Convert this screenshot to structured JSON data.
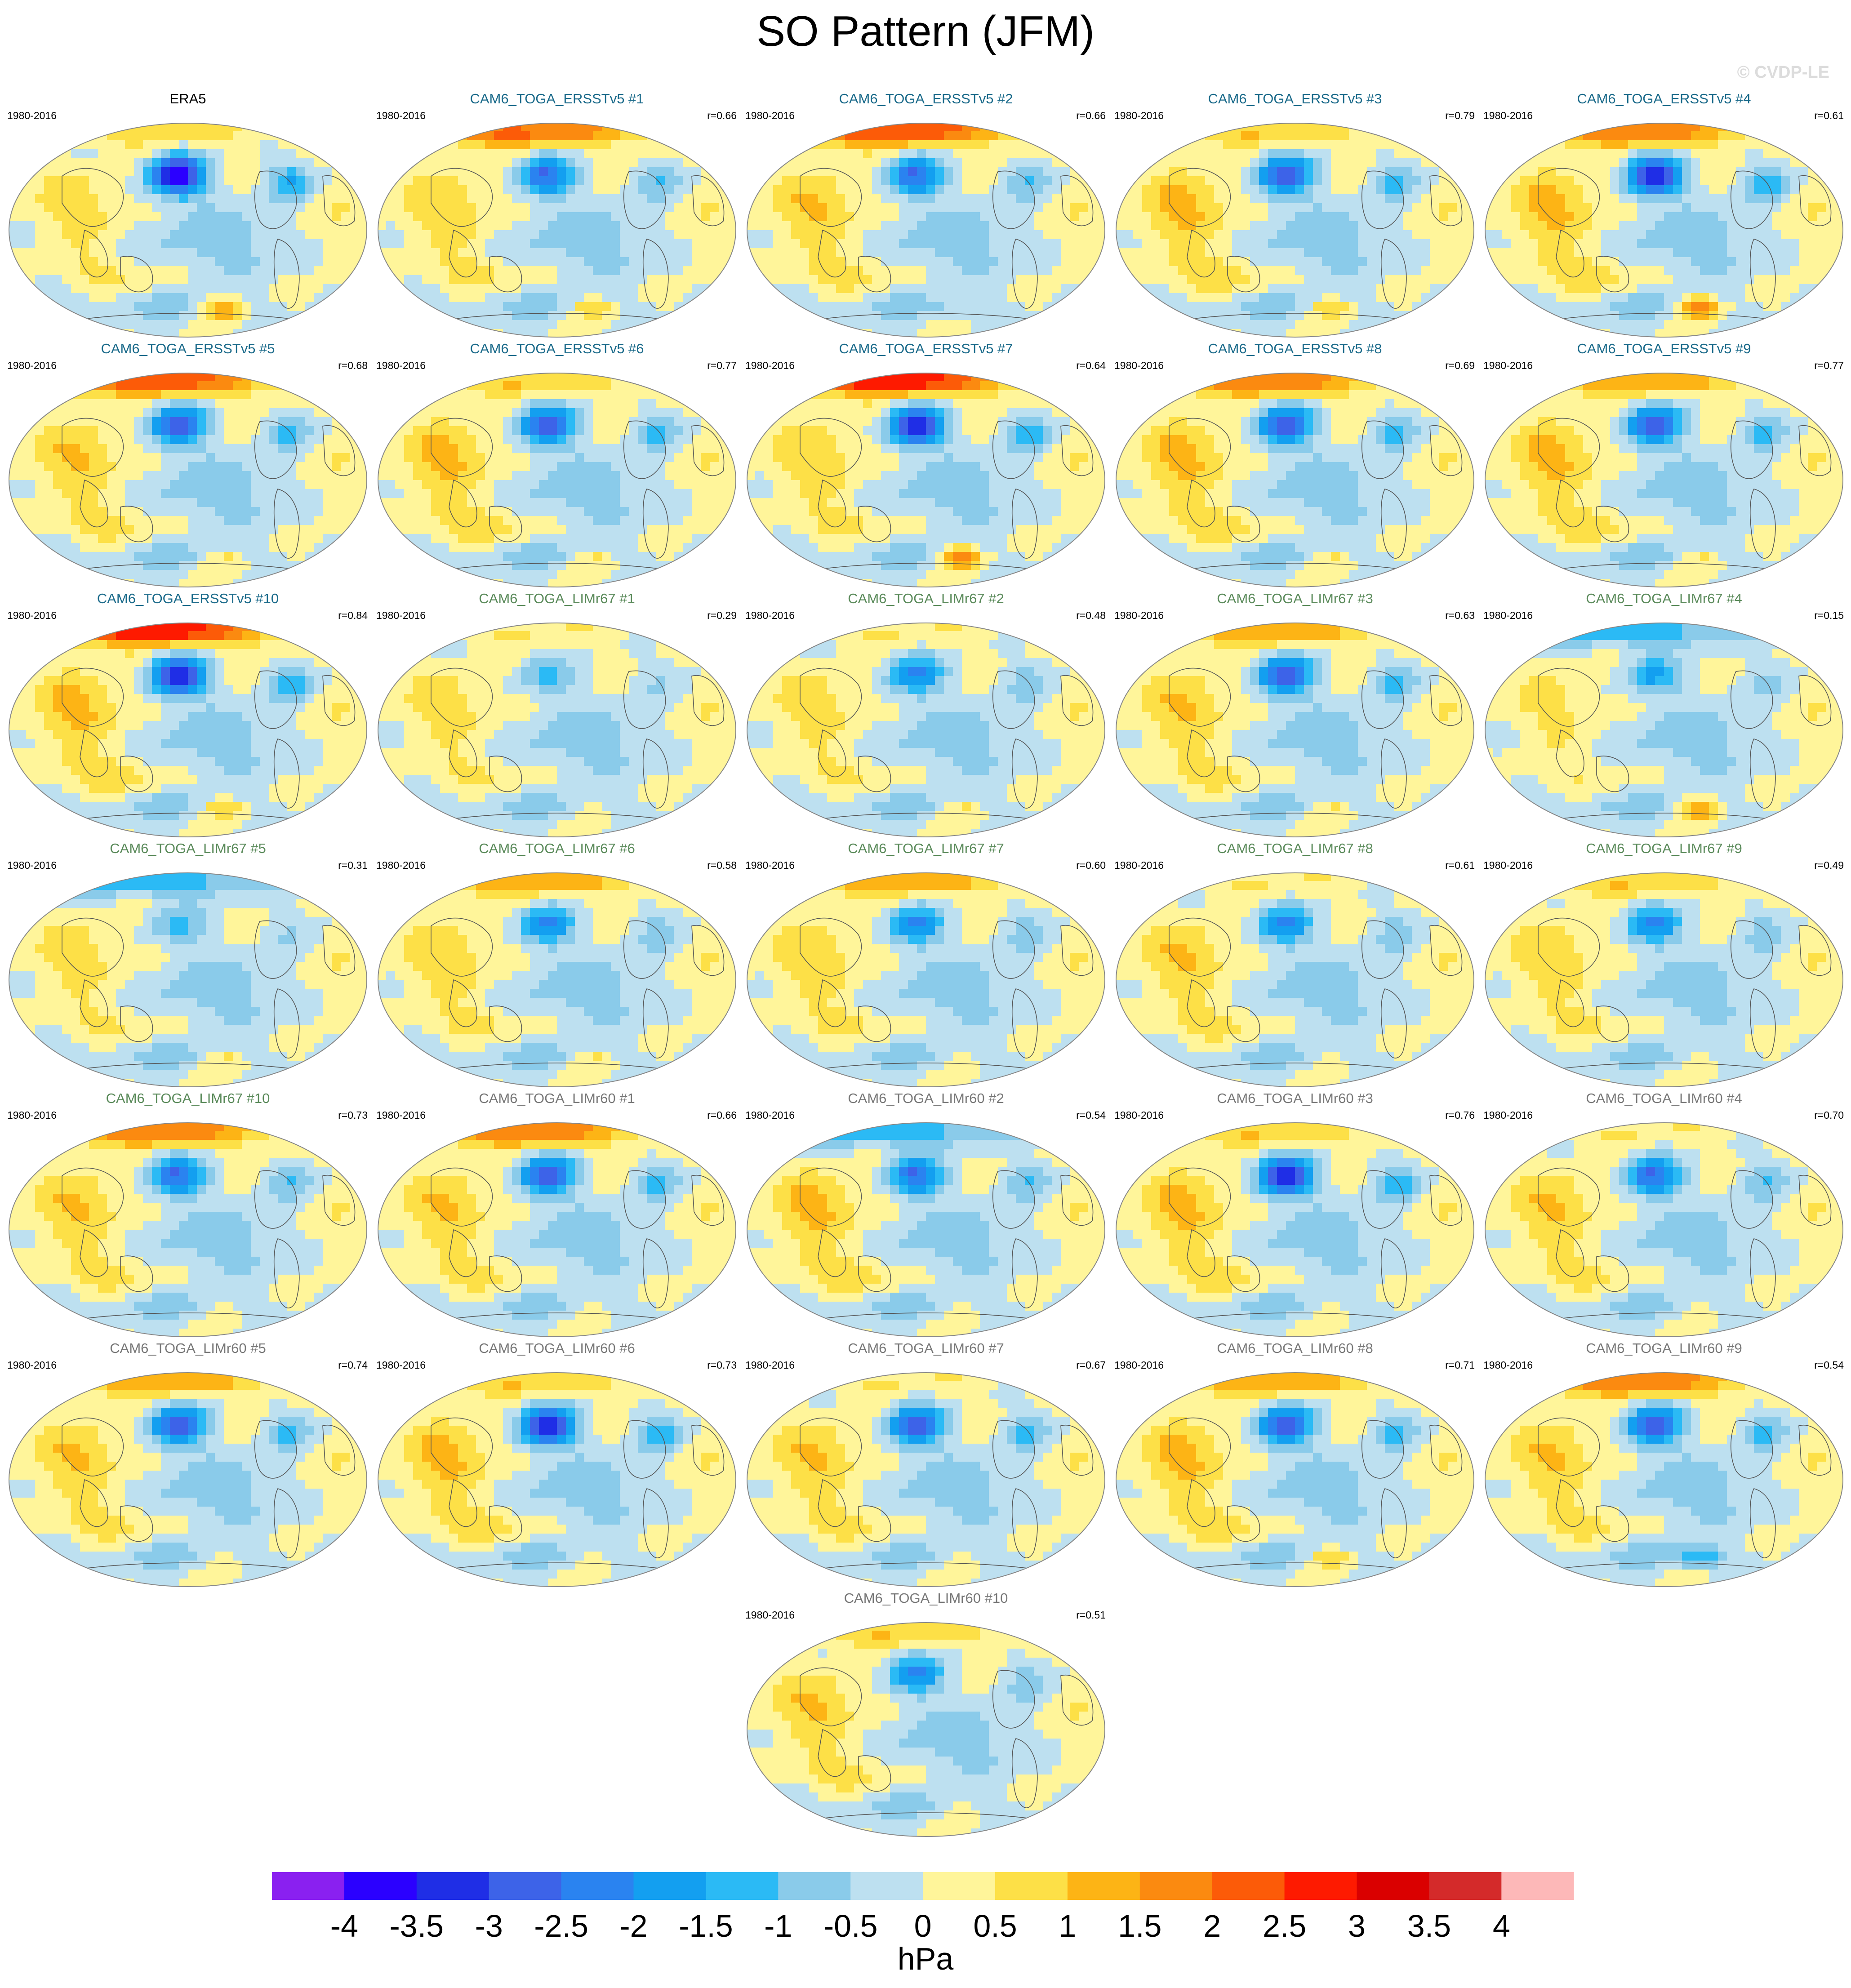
{
  "figure": {
    "title": "SO Pattern (JFM)",
    "watermark": "© CVDP-LE",
    "period": "1980-2016"
  },
  "colors": {
    "ensemble_ersst": "#1a6a8a",
    "ensemble_limr67": "#5a8a5a",
    "ensemble_limr60": "#777777",
    "observation": "#000000",
    "coastline": "#555555"
  },
  "panels": [
    {
      "name": "ERA5",
      "group": "observation",
      "corr": "",
      "pattern": [
        -4.0,
        0.8,
        0.6,
        2.0
      ]
    },
    {
      "name": "CAM6_TOGA_ERSSTv5 #1",
      "group": "ensemble_ersst",
      "corr": "r=0.66",
      "pattern": [
        -2.5,
        2.2,
        0.7,
        1.5
      ]
    },
    {
      "name": "CAM6_TOGA_ERSSTv5 #2",
      "group": "ensemble_ersst",
      "corr": "r=0.66",
      "pattern": [
        -2.5,
        2.6,
        0.8,
        0.0
      ]
    },
    {
      "name": "CAM6_TOGA_ERSSTv5 #3",
      "group": "ensemble_ersst",
      "corr": "r=0.79",
      "pattern": [
        -3.0,
        1.0,
        0.9,
        1.5
      ]
    },
    {
      "name": "CAM6_TOGA_ERSSTv5 #4",
      "group": "ensemble_ersst",
      "corr": "r=0.61",
      "pattern": [
        -3.5,
        2.0,
        0.9,
        2.5
      ]
    },
    {
      "name": "CAM6_TOGA_ERSSTv5 #5",
      "group": "ensemble_ersst",
      "corr": "r=0.68",
      "pattern": [
        -3.0,
        2.5,
        0.8,
        1.0
      ]
    },
    {
      "name": "CAM6_TOGA_ERSSTv5 #6",
      "group": "ensemble_ersst",
      "corr": "r=0.77",
      "pattern": [
        -3.0,
        1.0,
        0.9,
        1.0
      ]
    },
    {
      "name": "CAM6_TOGA_ERSSTv5 #7",
      "group": "ensemble_ersst",
      "corr": "r=0.64",
      "pattern": [
        -3.5,
        3.0,
        0.7,
        2.5
      ]
    },
    {
      "name": "CAM6_TOGA_ERSSTv5 #8",
      "group": "ensemble_ersst",
      "corr": "r=0.69",
      "pattern": [
        -3.0,
        2.0,
        0.9,
        1.0
      ]
    },
    {
      "name": "CAM6_TOGA_ERSSTv5 #9",
      "group": "ensemble_ersst",
      "corr": "r=0.77",
      "pattern": [
        -3.0,
        1.5,
        0.9,
        1.0
      ]
    },
    {
      "name": "CAM6_TOGA_ERSSTv5 #10",
      "group": "ensemble_ersst",
      "corr": "r=0.84",
      "pattern": [
        -3.5,
        3.0,
        0.9,
        1.5
      ]
    },
    {
      "name": "CAM6_TOGA_LIMr67 #1",
      "group": "ensemble_limr67",
      "corr": "r=0.29",
      "pattern": [
        -1.0,
        0.5,
        0.6,
        0.5
      ]
    },
    {
      "name": "CAM6_TOGA_LIMr67 #2",
      "group": "ensemble_limr67",
      "corr": "r=0.48",
      "pattern": [
        -2.0,
        0.5,
        0.6,
        1.0
      ]
    },
    {
      "name": "CAM6_TOGA_LIMr67 #3",
      "group": "ensemble_limr67",
      "corr": "r=0.63",
      "pattern": [
        -3.0,
        1.5,
        0.8,
        1.0
      ]
    },
    {
      "name": "CAM6_TOGA_LIMr67 #4",
      "group": "ensemble_limr67",
      "corr": "r=0.15",
      "pattern": [
        -1.5,
        -1.5,
        0.5,
        2.0
      ]
    },
    {
      "name": "CAM6_TOGA_LIMr67 #5",
      "group": "ensemble_limr67",
      "corr": "r=0.31",
      "pattern": [
        -1.0,
        -1.5,
        0.6,
        1.0
      ]
    },
    {
      "name": "CAM6_TOGA_LIMr67 #6",
      "group": "ensemble_limr67",
      "corr": "r=0.58",
      "pattern": [
        -2.0,
        1.5,
        0.7,
        1.0
      ]
    },
    {
      "name": "CAM6_TOGA_LIMr67 #7",
      "group": "ensemble_limr67",
      "corr": "r=0.60",
      "pattern": [
        -2.0,
        1.5,
        0.7,
        0.5
      ]
    },
    {
      "name": "CAM6_TOGA_LIMr67 #8",
      "group": "ensemble_limr67",
      "corr": "r=0.61",
      "pattern": [
        -2.0,
        0.5,
        0.8,
        0.5
      ]
    },
    {
      "name": "CAM6_TOGA_LIMr67 #9",
      "group": "ensemble_limr67",
      "corr": "r=0.49",
      "pattern": [
        -2.0,
        1.0,
        0.7,
        0.5
      ]
    },
    {
      "name": "CAM6_TOGA_LIMr67 #10",
      "group": "ensemble_limr67",
      "corr": "r=0.73",
      "pattern": [
        -2.5,
        2.0,
        0.8,
        0.5
      ]
    },
    {
      "name": "CAM6_TOGA_LIMr60 #1",
      "group": "ensemble_limr60",
      "corr": "r=0.66",
      "pattern": [
        -3.0,
        2.0,
        0.8,
        0.5
      ]
    },
    {
      "name": "CAM6_TOGA_LIMr60 #2",
      "group": "ensemble_limr60",
      "corr": "r=0.54",
      "pattern": [
        -2.5,
        -1.5,
        0.9,
        0.5
      ]
    },
    {
      "name": "CAM6_TOGA_LIMr60 #3",
      "group": "ensemble_limr60",
      "corr": "r=0.76",
      "pattern": [
        -3.5,
        1.0,
        0.9,
        0.5
      ]
    },
    {
      "name": "CAM6_TOGA_LIMr60 #4",
      "group": "ensemble_limr60",
      "corr": "r=0.70",
      "pattern": [
        -2.5,
        0.5,
        0.8,
        0.5
      ]
    },
    {
      "name": "CAM6_TOGA_LIMr60 #5",
      "group": "ensemble_limr60",
      "corr": "r=0.74",
      "pattern": [
        -3.0,
        1.5,
        0.8,
        0.5
      ]
    },
    {
      "name": "CAM6_TOGA_LIMr60 #6",
      "group": "ensemble_limr60",
      "corr": "r=0.73",
      "pattern": [
        -3.5,
        1.0,
        0.9,
        0.5
      ]
    },
    {
      "name": "CAM6_TOGA_LIMr60 #7",
      "group": "ensemble_limr60",
      "corr": "r=0.67",
      "pattern": [
        -3.0,
        0.5,
        0.8,
        0.5
      ]
    },
    {
      "name": "CAM6_TOGA_LIMr60 #8",
      "group": "ensemble_limr60",
      "corr": "r=0.71",
      "pattern": [
        -3.0,
        1.5,
        0.9,
        1.5
      ]
    },
    {
      "name": "CAM6_TOGA_LIMr60 #9",
      "group": "ensemble_limr60",
      "corr": "r=0.54",
      "pattern": [
        -3.0,
        2.0,
        0.8,
        -1.0
      ]
    },
    {
      "name": "CAM6_TOGA_LIMr60 #10",
      "group": "ensemble_limr60",
      "corr": "r=0.51",
      "pattern": [
        -2.0,
        1.0,
        0.8,
        0.5
      ]
    }
  ],
  "colorbar": {
    "unit": "hPa",
    "labels": [
      "-4",
      "-3.5",
      "-3",
      "-2.5",
      "-2",
      "-1.5",
      "-1",
      "-0.5",
      "0",
      "0.5",
      "1",
      "1.5",
      "2",
      "2.5",
      "3",
      "3.5",
      "4"
    ],
    "levels": [
      -4,
      -3.5,
      -3,
      -2.5,
      -2,
      -1.5,
      -1,
      -0.5,
      0,
      0.5,
      1,
      1.5,
      2,
      2.5,
      3,
      3.5,
      4
    ],
    "colors": [
      "#8a20f0",
      "#2b00ff",
      "#1f2ee6",
      "#3d63e8",
      "#2a83f0",
      "#139ff0",
      "#2bbaf5",
      "#8acbea",
      "#bde0f0",
      "#fff59a",
      "#fde047",
      "#fdb415",
      "#fb8a10",
      "#fc5b08",
      "#fe1a00",
      "#da0000",
      "#d42a2a",
      "#fdb8b8"
    ]
  }
}
